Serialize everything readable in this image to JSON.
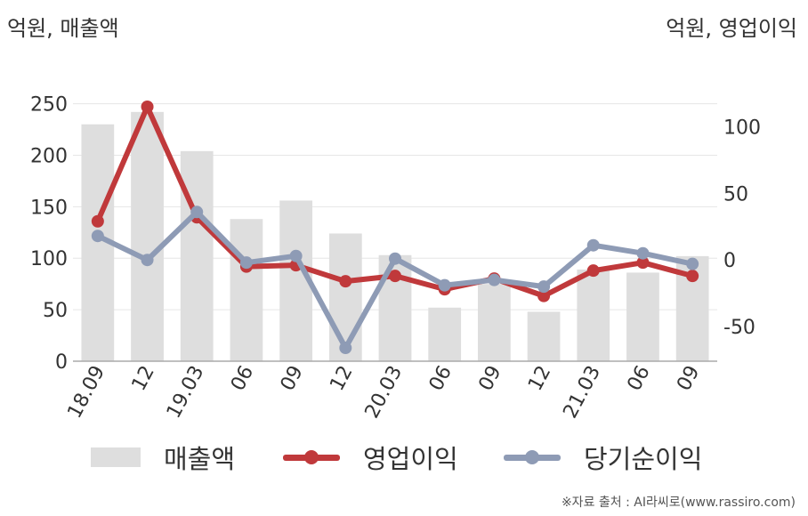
{
  "units": {
    "left": "억원, 매출액",
    "right": "억원, 영업이익"
  },
  "chart_data": {
    "type": "bar",
    "categories": [
      "18.09",
      "12",
      "19.03",
      "06",
      "09",
      "12",
      "20.03",
      "06",
      "09",
      "12",
      "21.03",
      "06",
      "09"
    ],
    "series": [
      {
        "name": "매출액",
        "type": "bar",
        "axis": "left",
        "color": "#dedede",
        "values": [
          230,
          242,
          204,
          138,
          156,
          124,
          103,
          52,
          75,
          48,
          89,
          86,
          102
        ]
      },
      {
        "name": "영업이익",
        "type": "line",
        "axis": "right",
        "color": "#c0393b",
        "values": [
          29,
          115,
          32,
          -5,
          -4,
          -16,
          -12,
          -22,
          -14,
          -27,
          -8,
          -2,
          -12
        ]
      },
      {
        "name": "당기순이익",
        "type": "line",
        "axis": "right",
        "color": "#8e9bb5",
        "values": [
          18,
          0,
          36,
          -2,
          3,
          -66,
          1,
          -19,
          -15,
          -20,
          11,
          5,
          -3
        ]
      }
    ],
    "y_left": {
      "ylim": [
        0,
        260
      ],
      "ticks": [
        0,
        50,
        100,
        150,
        200,
        250
      ]
    },
    "y_right": {
      "ylim": [
        -76,
        125
      ],
      "ticks": [
        -50,
        0,
        50,
        100
      ]
    },
    "grid": true,
    "legend_position": "bottom"
  },
  "source": "※자료 출처 : AI라씨로(www.rassiro.com)"
}
